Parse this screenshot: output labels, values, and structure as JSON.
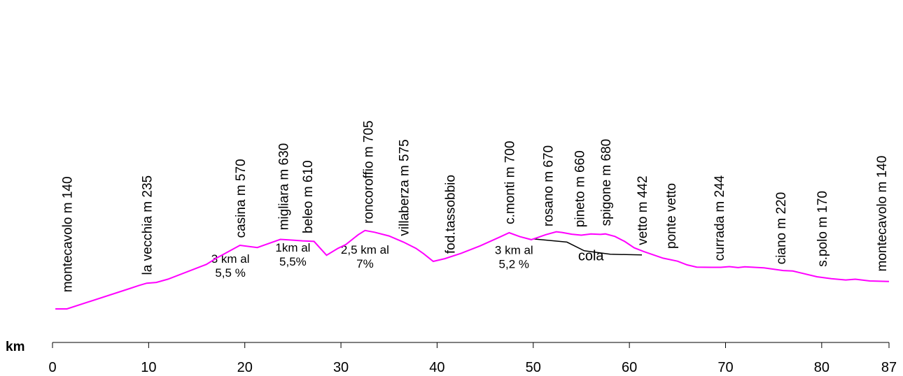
{
  "chart_data": {
    "type": "line",
    "xlabel": "km",
    "xlim": [
      0,
      87
    ],
    "x_ticks": [
      0,
      10,
      20,
      30,
      40,
      50,
      60,
      70,
      80,
      87
    ],
    "colors": {
      "profile": "#ff00ff",
      "branch": "#000000"
    },
    "grid": false,
    "series": [
      {
        "points": [
          [
            0.3,
            140
          ],
          [
            1.5,
            140
          ],
          [
            8,
            222
          ],
          [
            9,
            235
          ],
          [
            9.8,
            244
          ],
          [
            10.8,
            247
          ],
          [
            12,
            260
          ],
          [
            14,
            290
          ],
          [
            16,
            320
          ],
          [
            17,
            344
          ],
          [
            19.5,
            397
          ],
          [
            21.3,
            388
          ],
          [
            23.7,
            421
          ],
          [
            25,
            418
          ],
          [
            26,
            415
          ],
          [
            27.2,
            413
          ],
          [
            28.5,
            357
          ],
          [
            29.7,
            385
          ],
          [
            30.5,
            400
          ],
          [
            31.8,
            440
          ],
          [
            32.5,
            457
          ],
          [
            33.5,
            450
          ],
          [
            35,
            435
          ],
          [
            36.5,
            410
          ],
          [
            37.8,
            385
          ],
          [
            38.6,
            363
          ],
          [
            39.6,
            332
          ],
          [
            40.8,
            343
          ],
          [
            42.5,
            365
          ],
          [
            44.5,
            395
          ],
          [
            46.5,
            430
          ],
          [
            47.5,
            448
          ],
          [
            48.6,
            432
          ],
          [
            49.8,
            420
          ],
          [
            50.5,
            429
          ],
          [
            51.3,
            440
          ],
          [
            52.4,
            452
          ],
          [
            53,
            449
          ],
          [
            54,
            442
          ],
          [
            55,
            438
          ],
          [
            56,
            443
          ],
          [
            57,
            441
          ],
          [
            57.5,
            443
          ],
          [
            58.5,
            433
          ],
          [
            59.5,
            413
          ],
          [
            60.5,
            387
          ],
          [
            61.5,
            372
          ],
          [
            63.5,
            345
          ],
          [
            65,
            333
          ],
          [
            66,
            318
          ],
          [
            67,
            309
          ],
          [
            68.5,
            308
          ],
          [
            69.5,
            308
          ],
          [
            70.4,
            311
          ],
          [
            71.3,
            307
          ],
          [
            72,
            310
          ],
          [
            74,
            306
          ],
          [
            76,
            295
          ],
          [
            77,
            293
          ],
          [
            79.5,
            270
          ],
          [
            81,
            262
          ],
          [
            82.5,
            257
          ],
          [
            83.5,
            260
          ],
          [
            85,
            253
          ],
          [
            86,
            252
          ],
          [
            87,
            251
          ]
        ]
      }
    ],
    "cola_branch": [
      [
        50,
        423
      ],
      [
        53.5,
        410
      ],
      [
        55.3,
        375
      ],
      [
        58,
        361
      ],
      [
        61.3,
        358
      ]
    ],
    "place_labels": [
      {
        "text": "montecavolo m 140",
        "km": 1.5,
        "start_elev": 207
      },
      {
        "text": "la vecchia m 235",
        "km": 9.8,
        "start_elev": 277
      },
      {
        "text": "casina m 570",
        "km": 19.5,
        "start_elev": 427
      },
      {
        "text": "migliara m 630",
        "km": 24,
        "start_elev": 458
      },
      {
        "text": "beleo m 610",
        "km": 26.5,
        "start_elev": 445
      },
      {
        "text": "roncoroffio m 705",
        "km": 32.8,
        "start_elev": 485
      },
      {
        "text": "villaberza m 575",
        "km": 36.5,
        "start_elev": 435
      },
      {
        "text": "fod.tassobbio",
        "km": 41.3,
        "start_elev": 363
      },
      {
        "text": "c.monti m 700",
        "km": 47.5,
        "start_elev": 482
      },
      {
        "text": "rosano m 670",
        "km": 51.5,
        "start_elev": 473
      },
      {
        "text": "pineto m 660",
        "km": 54.8,
        "start_elev": 470
      },
      {
        "text": "spigone m 680",
        "km": 57.5,
        "start_elev": 475
      },
      {
        "text": "vetto m 442",
        "km": 61.3,
        "start_elev": 398
      },
      {
        "text": "ponte vetto",
        "km": 64.3,
        "start_elev": 383
      },
      {
        "text": "currada m 244",
        "km": 69.3,
        "start_elev": 334
      },
      {
        "text": "ciano m 220",
        "km": 75.7,
        "start_elev": 320
      },
      {
        "text": "s.polo m 170",
        "km": 80,
        "start_elev": 310
      },
      {
        "text": "montecavolo  m 140",
        "km": 86.2,
        "start_elev": 291
      }
    ],
    "annotations": [
      {
        "lines": [
          "3 km al",
          "5,5 %"
        ],
        "km": 18.5,
        "elev": 326
      },
      {
        "lines": [
          "1km al",
          "5,5%"
        ],
        "km": 25,
        "elev": 372
      },
      {
        "lines": [
          "2,5 km al",
          "7%"
        ],
        "km": 32.5,
        "elev": 363
      },
      {
        "lines": [
          "3 km al",
          "5,2 %"
        ],
        "km": 48,
        "elev": 362
      },
      {
        "lines": [
          "cola"
        ],
        "km": 56,
        "elev": 337
      }
    ]
  }
}
